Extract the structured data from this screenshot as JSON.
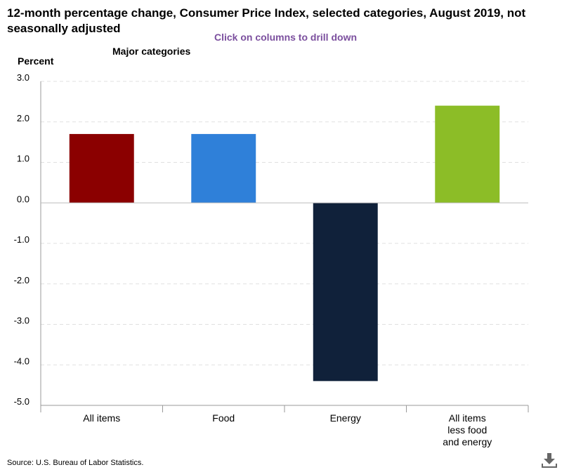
{
  "header": {
    "title": "12-month percentage change, Consumer Price Index, selected categories, August 2019, not seasonally adjusted",
    "drill_hint": "Click on columns to drill down"
  },
  "footer": {
    "source": "Source: U.S. Bureau of Labor Statistics.",
    "download_icon": "download-icon"
  },
  "colors": {
    "drill_hint": "#7b4f9e",
    "grid": "#e0e0e0",
    "axis": "#999999"
  },
  "chart_data": {
    "type": "bar",
    "title": "12-month percentage change, Consumer Price Index, selected categories, August 2019, not seasonally adjusted",
    "subtitle": "Major categories",
    "ylabel": "Percent",
    "xlabel": "",
    "ylim": [
      -5.0,
      3.0
    ],
    "yticks": [
      3.0,
      2.0,
      1.0,
      0.0,
      -1.0,
      -2.0,
      -3.0,
      -4.0,
      -5.0
    ],
    "ytick_labels": [
      "3.0",
      "2.0",
      "1.0",
      "0.0",
      "-1.0",
      "-2.0",
      "-3.0",
      "-4.0",
      "-5.0"
    ],
    "grid": true,
    "categories": [
      {
        "label": "All items",
        "lines": [
          "All items"
        ]
      },
      {
        "label": "Food",
        "lines": [
          "Food"
        ]
      },
      {
        "label": "Energy",
        "lines": [
          "Energy"
        ]
      },
      {
        "label": "All items less food and energy",
        "lines": [
          "All items",
          "less food",
          "and energy"
        ]
      }
    ],
    "values": [
      1.7,
      1.7,
      -4.4,
      2.4
    ],
    "bar_colors": [
      "#8b0000",
      "#2f80d9",
      "#10213a",
      "#8cbd27"
    ]
  }
}
